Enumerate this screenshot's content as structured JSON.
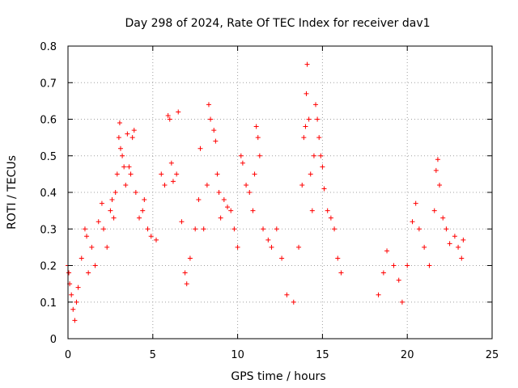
{
  "chart_data": {
    "type": "scatter",
    "title": "Day 298 of 2024, Rate Of TEC Index for receiver dav1",
    "xlabel": "GPS time / hours",
    "ylabel": "ROTI / TECUs",
    "xlim": [
      0,
      25
    ],
    "ylim": [
      0,
      0.8
    ],
    "xticks": [
      "0",
      "5",
      "10",
      "15",
      "20",
      "25"
    ],
    "yticks": [
      "0",
      "0.1",
      "0.2",
      "0.3",
      "0.4",
      "0.5",
      "0.6",
      "0.7",
      "0.8"
    ],
    "grid": true,
    "marker": "+",
    "color": "#ff0000",
    "series": [
      {
        "points": [
          [
            0.0,
            0.2
          ],
          [
            0.05,
            0.18
          ],
          [
            0.1,
            0.15
          ],
          [
            0.2,
            0.12
          ],
          [
            0.3,
            0.08
          ],
          [
            0.4,
            0.05
          ],
          [
            0.5,
            0.1
          ],
          [
            0.6,
            0.14
          ],
          [
            0.8,
            0.22
          ],
          [
            1.0,
            0.3
          ],
          [
            1.1,
            0.28
          ],
          [
            1.2,
            0.18
          ],
          [
            1.4,
            0.25
          ],
          [
            1.6,
            0.2
          ],
          [
            1.8,
            0.32
          ],
          [
            2.0,
            0.37
          ],
          [
            2.1,
            0.3
          ],
          [
            2.3,
            0.25
          ],
          [
            2.5,
            0.35
          ],
          [
            2.6,
            0.38
          ],
          [
            2.7,
            0.33
          ],
          [
            2.8,
            0.4
          ],
          [
            2.9,
            0.45
          ],
          [
            3.0,
            0.55
          ],
          [
            3.05,
            0.59
          ],
          [
            3.1,
            0.52
          ],
          [
            3.2,
            0.5
          ],
          [
            3.3,
            0.47
          ],
          [
            3.4,
            0.42
          ],
          [
            3.5,
            0.56
          ],
          [
            3.6,
            0.47
          ],
          [
            3.7,
            0.45
          ],
          [
            3.8,
            0.55
          ],
          [
            3.9,
            0.57
          ],
          [
            4.0,
            0.4
          ],
          [
            4.2,
            0.33
          ],
          [
            4.4,
            0.35
          ],
          [
            4.5,
            0.38
          ],
          [
            4.7,
            0.3
          ],
          [
            4.9,
            0.28
          ],
          [
            5.2,
            0.27
          ],
          [
            5.5,
            0.45
          ],
          [
            5.7,
            0.42
          ],
          [
            5.9,
            0.61
          ],
          [
            6.0,
            0.6
          ],
          [
            6.1,
            0.48
          ],
          [
            6.2,
            0.43
          ],
          [
            6.4,
            0.45
          ],
          [
            6.5,
            0.62
          ],
          [
            6.7,
            0.32
          ],
          [
            6.9,
            0.18
          ],
          [
            7.0,
            0.15
          ],
          [
            7.2,
            0.22
          ],
          [
            7.5,
            0.3
          ],
          [
            7.7,
            0.38
          ],
          [
            7.8,
            0.52
          ],
          [
            8.0,
            0.3
          ],
          [
            8.2,
            0.42
          ],
          [
            8.3,
            0.64
          ],
          [
            8.4,
            0.6
          ],
          [
            8.6,
            0.57
          ],
          [
            8.7,
            0.54
          ],
          [
            8.8,
            0.45
          ],
          [
            8.9,
            0.4
          ],
          [
            9.0,
            0.33
          ],
          [
            9.2,
            0.38
          ],
          [
            9.4,
            0.36
          ],
          [
            9.6,
            0.35
          ],
          [
            9.8,
            0.3
          ],
          [
            10.0,
            0.25
          ],
          [
            10.2,
            0.5
          ],
          [
            10.3,
            0.48
          ],
          [
            10.5,
            0.42
          ],
          [
            10.7,
            0.4
          ],
          [
            10.9,
            0.35
          ],
          [
            11.0,
            0.45
          ],
          [
            11.1,
            0.58
          ],
          [
            11.2,
            0.55
          ],
          [
            11.3,
            0.5
          ],
          [
            11.5,
            0.3
          ],
          [
            11.8,
            0.27
          ],
          [
            12.0,
            0.25
          ],
          [
            12.3,
            0.3
          ],
          [
            12.6,
            0.22
          ],
          [
            12.9,
            0.12
          ],
          [
            13.3,
            0.1
          ],
          [
            13.6,
            0.25
          ],
          [
            13.8,
            0.42
          ],
          [
            13.9,
            0.55
          ],
          [
            14.0,
            0.58
          ],
          [
            14.05,
            0.67
          ],
          [
            14.1,
            0.75
          ],
          [
            14.2,
            0.6
          ],
          [
            14.3,
            0.45
          ],
          [
            14.4,
            0.35
          ],
          [
            14.5,
            0.5
          ],
          [
            14.6,
            0.64
          ],
          [
            14.7,
            0.6
          ],
          [
            14.8,
            0.55
          ],
          [
            14.9,
            0.5
          ],
          [
            15.0,
            0.47
          ],
          [
            15.1,
            0.41
          ],
          [
            15.3,
            0.35
          ],
          [
            15.5,
            0.33
          ],
          [
            15.7,
            0.3
          ],
          [
            15.9,
            0.22
          ],
          [
            16.1,
            0.18
          ],
          [
            18.3,
            0.12
          ],
          [
            18.6,
            0.18
          ],
          [
            18.8,
            0.24
          ],
          [
            19.2,
            0.2
          ],
          [
            19.5,
            0.16
          ],
          [
            19.7,
            0.1
          ],
          [
            20.0,
            0.2
          ],
          [
            20.3,
            0.32
          ],
          [
            20.5,
            0.37
          ],
          [
            20.7,
            0.3
          ],
          [
            21.0,
            0.25
          ],
          [
            21.3,
            0.2
          ],
          [
            21.6,
            0.35
          ],
          [
            21.7,
            0.46
          ],
          [
            21.8,
            0.49
          ],
          [
            21.9,
            0.42
          ],
          [
            22.1,
            0.33
          ],
          [
            22.3,
            0.3
          ],
          [
            22.5,
            0.26
          ],
          [
            22.8,
            0.28
          ],
          [
            23.0,
            0.25
          ],
          [
            23.2,
            0.22
          ],
          [
            23.3,
            0.27
          ]
        ]
      }
    ]
  }
}
